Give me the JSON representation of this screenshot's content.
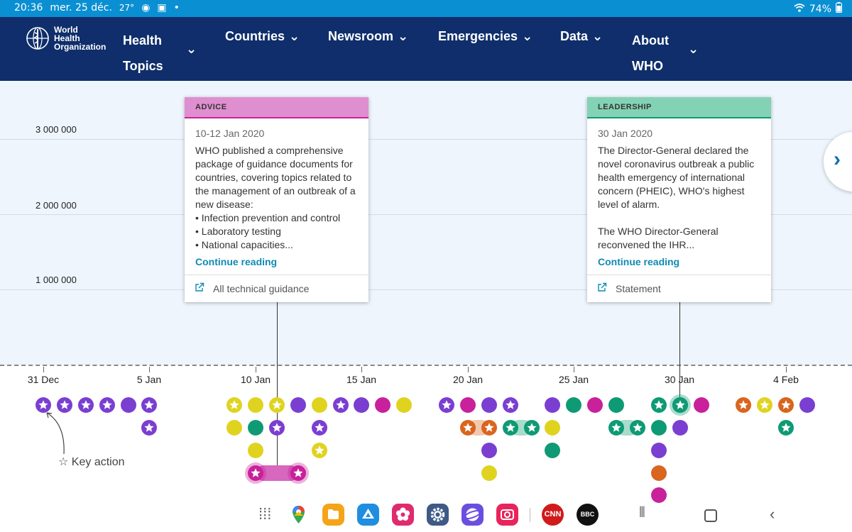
{
  "status_bar": {
    "time": "20:36",
    "date": "mer. 25 déc.",
    "temp": "27°",
    "battery": "74%",
    "icons": [
      "weather-icon",
      "camera-icon",
      "gallery-icon",
      "wifi-icon",
      "battery-icon"
    ]
  },
  "nav": {
    "logo_text_line1": "World Health",
    "logo_text_line2": "Organization",
    "items": [
      {
        "label_line1": "Health",
        "label_line2": "Topics"
      },
      {
        "label_line1": "Countries",
        "label_line2": ""
      },
      {
        "label_line1": "Newsroom",
        "label_line2": ""
      },
      {
        "label_line1": "Emergencies",
        "label_line2": ""
      },
      {
        "label_line1": "Data",
        "label_line2": ""
      },
      {
        "label_line1": "About",
        "label_line2": "WHO"
      }
    ]
  },
  "chart": {
    "y_ticks": [
      "3 000 000",
      "2 000 000",
      "1 000 000"
    ],
    "x_ticks": [
      "31 Dec",
      "5 Jan",
      "10 Jan",
      "15 Jan",
      "20 Jan",
      "25 Jan",
      "30 Jan",
      "4 Feb"
    ]
  },
  "cards": {
    "advice": {
      "category": "ADVICE",
      "date": "10-12 Jan 2020",
      "text": "WHO published a comprehensive package of guidance documents for countries, covering topics related to the management of an outbreak of a new disease:\n• Infection prevention and control\n• Laboratory testing\n• National capacities...",
      "link": "Continue reading",
      "footer": "All technical guidance"
    },
    "leadership": {
      "category": "LEADERSHIP",
      "date": "30 Jan 2020",
      "text": "The Director-General declared the novel coronavirus outbreak a public health emergency of international concern (PHEIC), WHO's highest level of alarm.\n\nThe WHO Director-General reconvened the IHR...",
      "link": "Continue reading",
      "footer": "Statement"
    }
  },
  "legend": {
    "key_action": "Key action"
  },
  "colors": {
    "purple": "#7a3fd1",
    "yellow": "#e0d320",
    "green": "#0e9a75",
    "magenta": "#c9209b",
    "orange": "#d9651e",
    "nav_bg": "#0f2e6b"
  },
  "dock": {
    "apps": [
      "apps-grid-icon",
      "maps-icon",
      "files-icon",
      "drive-icon",
      "gallery-flower-icon",
      "settings-icon",
      "internet-icon",
      "camera-app-icon",
      "cnn-icon",
      "bbc-icon"
    ],
    "cnn_label": "CNN",
    "bbc_label": "BBC"
  }
}
